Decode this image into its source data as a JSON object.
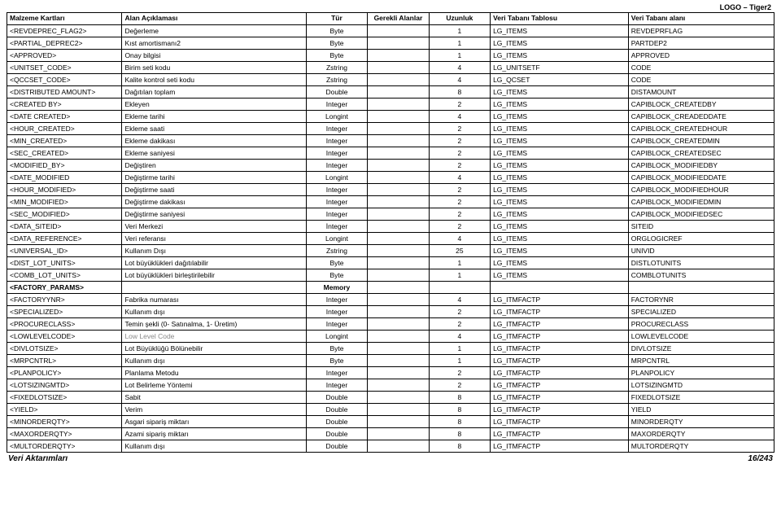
{
  "header_right": "LOGO – Tiger2",
  "columns": [
    "Malzeme Kartları",
    "Alan Açıklaması",
    "Tür",
    "Gerekli Alanlar",
    "Uzunluk",
    "Veri Tabanı Tablosu",
    "Veri Tabanı alanı"
  ],
  "rows": [
    {
      "c0": "<REVDEPREC_FLAG2>",
      "c1": "Değerleme",
      "c2": "Byte",
      "c3": "",
      "c4": "1",
      "c5": "LG_ITEMS",
      "c6": "REVDEPRFLAG"
    },
    {
      "c0": "<PARTIAL_DEPREC2>",
      "c1": "Kıst amortismanı2",
      "c2": "Byte",
      "c3": "",
      "c4": "1",
      "c5": "LG_ITEMS",
      "c6": "PARTDEP2"
    },
    {
      "c0": "<APPROVED>",
      "c1": "Onay bilgisi",
      "c2": "Byte",
      "c3": "",
      "c4": "1",
      "c5": "LG_ITEMS",
      "c6": "APPROVED"
    },
    {
      "c0": "<UNITSET_CODE>",
      "c1": "Birim seti kodu",
      "c2": "Zstring",
      "c3": "",
      "c4": "4",
      "c5": "LG_UNITSETF",
      "c6": "CODE"
    },
    {
      "c0": "<QCCSET_CODE>",
      "c1": "Kalite kontrol seti kodu",
      "c2": "Zstring",
      "c3": "",
      "c4": "4",
      "c5": "LG_QCSET",
      "c6": "CODE"
    },
    {
      "c0": "<DISTRIBUTED AMOUNT>",
      "c1": "Dağıtılan toplam",
      "c2": "Double",
      "c3": "",
      "c4": "8",
      "c5": "LG_ITEMS",
      "c6": "DISTAMOUNT"
    },
    {
      "c0": "<CREATED BY>",
      "c1": "Ekleyen",
      "c2": "Integer",
      "c3": "",
      "c4": "2",
      "c5": "LG_ITEMS",
      "c6": "CAPIBLOCK_CREATEDBY"
    },
    {
      "c0": "<DATE CREATED>",
      "c1": "Ekleme tarihi",
      "c2": "Longint",
      "c3": "",
      "c4": "4",
      "c5": "LG_ITEMS",
      "c6": "CAPIBLOCK_CREADEDDATE"
    },
    {
      "c0": "<HOUR_CREATED>",
      "c1": "Ekleme saati",
      "c2": "Integer",
      "c3": "",
      "c4": "2",
      "c5": "LG_ITEMS",
      "c6": "CAPIBLOCK_CREATEDHOUR"
    },
    {
      "c0": "<MIN_CREATED>",
      "c1": "Ekleme dakikası",
      "c2": "Integer",
      "c3": "",
      "c4": "2",
      "c5": "LG_ITEMS",
      "c6": "CAPIBLOCK_CREATEDMIN"
    },
    {
      "c0": "<SEC_CREATED>",
      "c1": "Ekleme saniyesi",
      "c2": "Integer",
      "c3": "",
      "c4": "2",
      "c5": "LG_ITEMS",
      "c6": "CAPIBLOCK_CREATEDSEC"
    },
    {
      "c0": "<MODIFIED_BY>",
      "c1": "Değiştiren",
      "c2": "Integer",
      "c3": "",
      "c4": "2",
      "c5": "LG_ITEMS",
      "c6": "CAPIBLOCK_MODIFIEDBY"
    },
    {
      "c0": "<DATE_MODIFIED",
      "c1": "Değiştirme tarihi",
      "c2": "Longint",
      "c3": "",
      "c4": "4",
      "c5": "LG_ITEMS",
      "c6": "CAPIBLOCK_MODIFIEDDATE"
    },
    {
      "c0": "<HOUR_MODIFIED>",
      "c1": "Değiştirme saati",
      "c2": "Integer",
      "c3": "",
      "c4": "2",
      "c5": "LG_ITEMS",
      "c6": "CAPIBLOCK_MODIFIEDHOUR"
    },
    {
      "c0": "<MIN_MODIFIED>",
      "c1": "Değiştirme dakikası",
      "c2": "Integer",
      "c3": "",
      "c4": "2",
      "c5": "LG_ITEMS",
      "c6": "CAPIBLOCK_MODIFIEDMIN"
    },
    {
      "c0": "<SEC_MODIFIED>",
      "c1": "Değiştirme saniyesi",
      "c2": "Integer",
      "c3": "",
      "c4": "2",
      "c5": "LG_ITEMS",
      "c6": "CAPIBLOCK_MODIFIEDSEC"
    },
    {
      "c0": "<DATA_SITEID>",
      "c1": "Veri Merkezi",
      "c2": "İnteger",
      "c3": "",
      "c4": "2",
      "c5": "LG_ITEMS",
      "c6": "SITEID"
    },
    {
      "c0": "<DATA_REFERENCE>",
      "c1": "Veri referansı",
      "c2": "Longint",
      "c3": "",
      "c4": "4",
      "c5": "LG_ITEMS",
      "c6": "ORGLOGICREF"
    },
    {
      "c0": "<UNIVERSAL_ID>",
      "c1": "Kullanım Dışı",
      "c2": "Zstring",
      "c3": "",
      "c4": "25",
      "c5": "LG_ITEMS",
      "c6": "UNIVID"
    },
    {
      "c0": "<DIST_LOT_UNITS>",
      "c1": "Lot büyüklükleri dağıtılabilir",
      "c2": "Byte",
      "c3": "",
      "c4": "1",
      "c5": "LG_ITEMS",
      "c6": "DISTLOTUNITS"
    },
    {
      "c0": "<COMB_LOT_UNITS>",
      "c1": "Lot büyüklükleri birleştirilebilir",
      "c2": "Byte",
      "c3": "",
      "c4": "1",
      "c5": "LG_ITEMS",
      "c6": "COMBLOTUNITS"
    },
    {
      "c0": "<FACTORY_PARAMS>",
      "c1": "",
      "c2": "Memory",
      "c3": "",
      "c4": "",
      "c5": "",
      "c6": "",
      "bold": true
    },
    {
      "c0": "<FACTORYYNR>",
      "c1": "Fabrika numarası",
      "c2": "Integer",
      "c3": "",
      "c4": "4",
      "c5": "LG_ITMFACTP",
      "c6": "FACTORYNR"
    },
    {
      "c0": "<SPECIALIZED>",
      "c1": "Kullanım dışı",
      "c2": "Integer",
      "c3": "",
      "c4": "2",
      "c5": "LG_ITMFACTP",
      "c6": "SPECIALIZED"
    },
    {
      "c0": "<PROCURECLASS>",
      "c1": "Temin şekli (0- Satınalma, 1- Üretim)",
      "c2": "Integer",
      "c3": "",
      "c4": "2",
      "c5": "LG_ITMFACTP",
      "c6": "PROCURECLASS"
    },
    {
      "c0": "<LOWLEVELCODE>",
      "c1": "Low Level Code",
      "c2": "Longint",
      "c3": "",
      "c4": "4",
      "c5": "LG_ITMFACTP",
      "c6": "LOWLEVELCODE",
      "grey": true
    },
    {
      "c0": "<DIVLOTSIZE>",
      "c1": "Lot Büyüklüğü Bölünebilir",
      "c2": "Byte",
      "c3": "",
      "c4": "1",
      "c5": "LG_ITMFACTP",
      "c6": "DIVLOTSIZE"
    },
    {
      "c0": "<MRPCNTRL>",
      "c1": "Kullanım dışı",
      "c2": "Byte",
      "c3": "",
      "c4": "1",
      "c5": "LG_ITMFACTP",
      "c6": "MRPCNTRL"
    },
    {
      "c0": "<PLANPOLICY>",
      "c1": "Planlama Metodu",
      "c2": "Integer",
      "c3": "",
      "c4": "2",
      "c5": "LG_ITMFACTP",
      "c6": "PLANPOLICY"
    },
    {
      "c0": "<LOTSIZINGMTD>",
      "c1": "Lot Belirleme Yöntemi",
      "c2": "Integer",
      "c3": "",
      "c4": "2",
      "c5": "LG_ITMFACTP",
      "c6": "LOTSIZINGMTD"
    },
    {
      "c0": "<FIXEDLOTSIZE>",
      "c1": "Sabit",
      "c2": "Double",
      "c3": "",
      "c4": "8",
      "c5": "LG_ITMFACTP",
      "c6": "FIXEDLOTSIZE"
    },
    {
      "c0": "<YIELD>",
      "c1": "Verim",
      "c2": "Double",
      "c3": "",
      "c4": "8",
      "c5": "LG_ITMFACTP",
      "c6": "YIELD"
    },
    {
      "c0": "<MINORDERQTY>",
      "c1": "Asgari sipariş miktarı",
      "c2": "Double",
      "c3": "",
      "c4": "8",
      "c5": "LG_ITMFACTP",
      "c6": "MINORDERQTY"
    },
    {
      "c0": "<MAXORDERQTY>",
      "c1": "Azami sipariş miktarı",
      "c2": "Double",
      "c3": "",
      "c4": "8",
      "c5": "LG_ITMFACTP",
      "c6": "MAXORDERQTY"
    },
    {
      "c0": "<MULTORDERQTY>",
      "c1": "Kullanım dışı",
      "c2": "Double",
      "c3": "",
      "c4": "8",
      "c5": "LG_ITMFACTP",
      "c6": "MULTORDERQTY"
    }
  ],
  "footer_left": "Veri Aktarımları",
  "footer_right": "16/243"
}
